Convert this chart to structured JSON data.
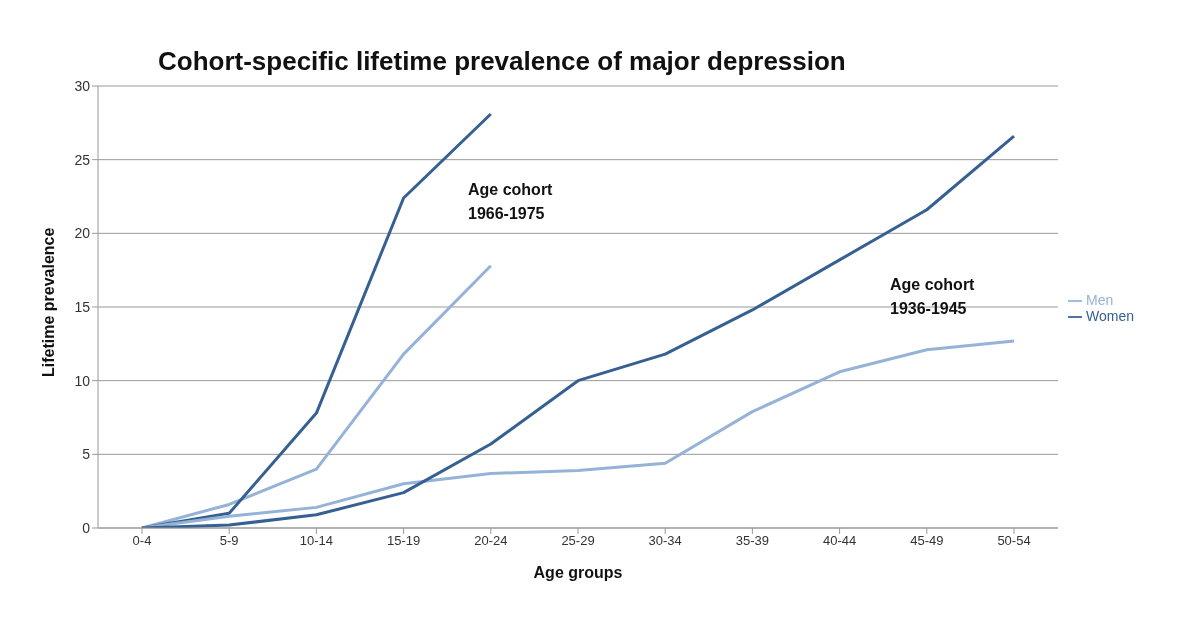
{
  "chart_data": {
    "type": "line",
    "title": "Cohort-specific lifetime prevalence of major depression",
    "xlabel": "Age groups",
    "ylabel": "Lifetime prevalence",
    "categories": [
      "0-4",
      "5-9",
      "10-14",
      "15-19",
      "20-24",
      "25-29",
      "30-34",
      "35-39",
      "40-44",
      "45-49",
      "50-54"
    ],
    "series": [
      {
        "name": "Men",
        "color": "#95b3d7",
        "values": [
          0,
          1.6,
          4.0,
          11.8,
          17.8,
          null,
          null,
          null,
          null,
          null,
          null
        ]
      },
      {
        "name": "Women",
        "color": "#376092",
        "values": [
          0,
          1.0,
          7.8,
          22.4,
          28.1,
          null,
          null,
          null,
          null,
          null,
          null
        ]
      },
      {
        "color": "#95b3d7",
        "values": [
          0,
          0.8,
          1.4,
          3.0,
          3.7,
          3.9,
          4.4,
          7.9,
          10.6,
          12.1,
          12.7
        ]
      },
      {
        "color": "#376092",
        "values": [
          0,
          0.2,
          0.9,
          2.4,
          5.7,
          10.0,
          11.8,
          14.8,
          18.2,
          21.6,
          26.6
        ]
      }
    ],
    "annotations": [
      "Age cohort\n1966-1975",
      "Age cohort\n1936-1945"
    ],
    "ylim": [
      0,
      30
    ],
    "yticks": [
      0,
      5,
      10,
      15,
      20,
      25,
      30
    ],
    "grid": "y",
    "legend": "right",
    "marker": "none",
    "line_style": "solid"
  }
}
